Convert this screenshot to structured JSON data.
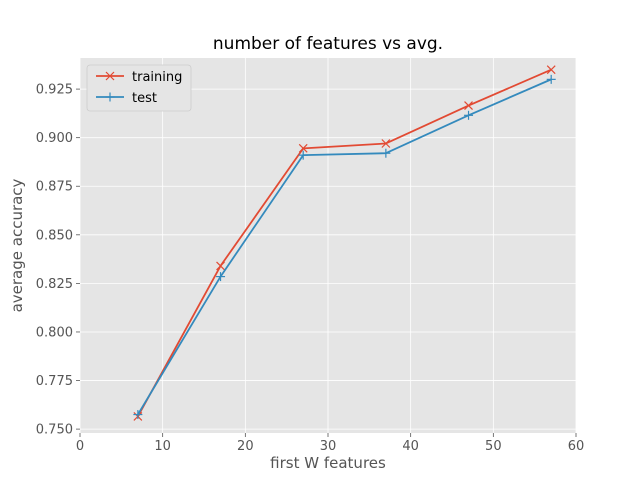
{
  "chart_data": {
    "type": "line",
    "title": "number of features vs avg.",
    "xlabel": "first W features",
    "ylabel": "average accuracy",
    "xlim": [
      0,
      60
    ],
    "ylim": [
      0.748,
      0.941
    ],
    "xticks": [
      0,
      10,
      20,
      30,
      40,
      50,
      60
    ],
    "yticks": [
      0.75,
      0.775,
      0.8,
      0.825,
      0.85,
      0.875,
      0.9,
      0.925
    ],
    "ytick_labels": [
      "0.750",
      "0.775",
      "0.800",
      "0.825",
      "0.850",
      "0.875",
      "0.900",
      "0.925"
    ],
    "x": [
      7,
      17,
      27,
      37,
      47,
      57
    ],
    "grid": true,
    "legend_position": "top-left",
    "series": [
      {
        "name": "training",
        "marker": "x",
        "color": "#e24a33",
        "values": [
          0.7565,
          0.834,
          0.8945,
          0.897,
          0.9165,
          0.935
        ]
      },
      {
        "name": "test",
        "marker": "+",
        "color": "#348abd",
        "values": [
          0.7575,
          0.8285,
          0.891,
          0.892,
          0.9115,
          0.93
        ]
      }
    ]
  }
}
